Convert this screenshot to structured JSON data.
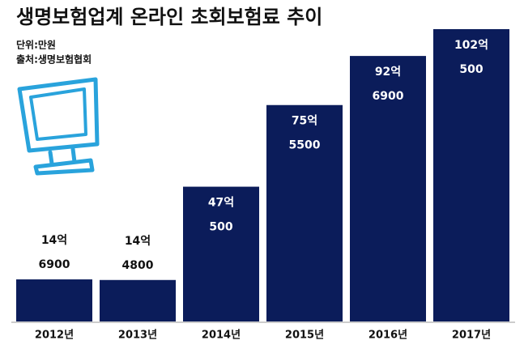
{
  "chart_data": {
    "type": "bar",
    "title": "생명보험업계 온라인 초회보험료 추이",
    "unit_note": "단위:만원",
    "source_note": "출처:생명보험협회",
    "categories": [
      "2012년",
      "2013년",
      "2014년",
      "2015년",
      "2016년",
      "2017년"
    ],
    "values": [
      146900,
      144800,
      470500,
      755500,
      926900,
      1020500
    ],
    "value_labels": [
      [
        "14억",
        "6900"
      ],
      [
        "14억",
        "4800"
      ],
      [
        "47억",
        "500"
      ],
      [
        "75억",
        "5500"
      ],
      [
        "92억",
        "6900"
      ],
      [
        "102억",
        "500"
      ]
    ],
    "color": "#0b1c5a"
  }
}
